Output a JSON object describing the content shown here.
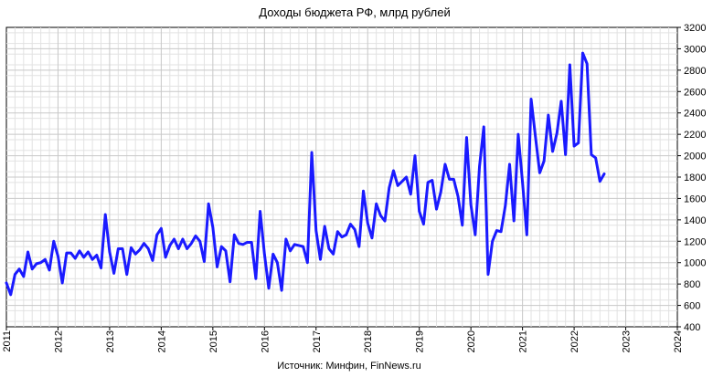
{
  "chart_data": {
    "type": "line",
    "title": "Доходы бюджета РФ, млрд рублей",
    "source": "Источник: Минфин, FinNews.ru",
    "xlabel": "",
    "ylabel": "",
    "x_ticks": [
      "2011",
      "2012",
      "2013",
      "2014",
      "2015",
      "2016",
      "2017",
      "2018",
      "2019",
      "2020",
      "2021",
      "2022",
      "2023",
      "2024"
    ],
    "y_ticks": [
      "400",
      "600",
      "800",
      "1000",
      "1200",
      "1400",
      "1600",
      "1800",
      "2000",
      "2200",
      "2400",
      "2600",
      "2800",
      "3000",
      "3200"
    ],
    "xlim": [
      "2011-01",
      "2024-01"
    ],
    "ylim": [
      400,
      3200
    ],
    "y_axis_position": "right",
    "grid": true,
    "colors": {
      "line": "#1a1aff",
      "grid": "#c8c8c8",
      "axis": "#000000"
    },
    "series": [
      {
        "name": "",
        "x": [
          "2011-01",
          "2011-02",
          "2011-03",
          "2011-04",
          "2011-05",
          "2011-06",
          "2011-07",
          "2011-08",
          "2011-09",
          "2011-10",
          "2011-11",
          "2011-12",
          "2012-01",
          "2012-02",
          "2012-03",
          "2012-04",
          "2012-05",
          "2012-06",
          "2012-07",
          "2012-08",
          "2012-09",
          "2012-10",
          "2012-11",
          "2012-12",
          "2013-01",
          "2013-02",
          "2013-03",
          "2013-04",
          "2013-05",
          "2013-06",
          "2013-07",
          "2013-08",
          "2013-09",
          "2013-10",
          "2013-11",
          "2013-12",
          "2014-01",
          "2014-02",
          "2014-03",
          "2014-04",
          "2014-05",
          "2014-06",
          "2014-07",
          "2014-08",
          "2014-09",
          "2014-10",
          "2014-11",
          "2014-12",
          "2015-01",
          "2015-02",
          "2015-03",
          "2015-04",
          "2015-05",
          "2015-06",
          "2015-07",
          "2015-08",
          "2015-09",
          "2015-10",
          "2015-11",
          "2015-12",
          "2016-01",
          "2016-02",
          "2016-03",
          "2016-04",
          "2016-05",
          "2016-06",
          "2016-07",
          "2016-08",
          "2016-09",
          "2016-10",
          "2016-11",
          "2016-12",
          "2017-01",
          "2017-02",
          "2017-03",
          "2017-04",
          "2017-05",
          "2017-06",
          "2017-07",
          "2017-08",
          "2017-09",
          "2017-10",
          "2017-11",
          "2017-12",
          "2018-01",
          "2018-02",
          "2018-03",
          "2018-04",
          "2018-05",
          "2018-06",
          "2018-07",
          "2018-08",
          "2018-09",
          "2018-10",
          "2018-11",
          "2018-12",
          "2019-01",
          "2019-02",
          "2019-03",
          "2019-04",
          "2019-05",
          "2019-06",
          "2019-07",
          "2019-08",
          "2019-09",
          "2019-10",
          "2019-11",
          "2019-12",
          "2020-01",
          "2020-02",
          "2020-03",
          "2020-04",
          "2020-05",
          "2020-06",
          "2020-07",
          "2020-08",
          "2020-09",
          "2020-10",
          "2020-11",
          "2020-12",
          "2021-01",
          "2021-02",
          "2021-03",
          "2021-04",
          "2021-05",
          "2021-06",
          "2021-07",
          "2021-08",
          "2021-09",
          "2021-10",
          "2021-11",
          "2021-12",
          "2022-01",
          "2022-02",
          "2022-03",
          "2022-04",
          "2022-05",
          "2022-06",
          "2022-07",
          "2022-08"
        ],
        "values": [
          810,
          700,
          890,
          940,
          870,
          1100,
          940,
          990,
          1000,
          1030,
          930,
          1200,
          1060,
          810,
          1090,
          1090,
          1040,
          1110,
          1050,
          1100,
          1030,
          1070,
          950,
          1450,
          1100,
          900,
          1130,
          1130,
          890,
          1140,
          1080,
          1120,
          1180,
          1130,
          1020,
          1260,
          1320,
          1050,
          1160,
          1220,
          1130,
          1220,
          1130,
          1180,
          1250,
          1200,
          1010,
          1550,
          1330,
          960,
          1150,
          1110,
          820,
          1260,
          1180,
          1170,
          1190,
          1190,
          850,
          1480,
          1080,
          760,
          1080,
          1000,
          740,
          1220,
          1110,
          1170,
          1160,
          1150,
          1000,
          2030,
          1300,
          1030,
          1340,
          1130,
          1080,
          1290,
          1240,
          1260,
          1360,
          1310,
          1150,
          1670,
          1370,
          1230,
          1550,
          1440,
          1390,
          1700,
          1860,
          1720,
          1760,
          1800,
          1640,
          2000,
          1480,
          1360,
          1750,
          1770,
          1500,
          1660,
          1920,
          1780,
          1780,
          1620,
          1350,
          2170,
          1540,
          1260,
          1900,
          2270,
          890,
          1200,
          1300,
          1290,
          1530,
          1920,
          1390,
          2200,
          1750,
          1260,
          2530,
          2180,
          1840,
          1950,
          2380,
          2040,
          2210,
          2510,
          2010,
          2850,
          2090,
          2120,
          2960,
          2860,
          2010,
          1980,
          1760,
          1830
        ]
      }
    ]
  }
}
